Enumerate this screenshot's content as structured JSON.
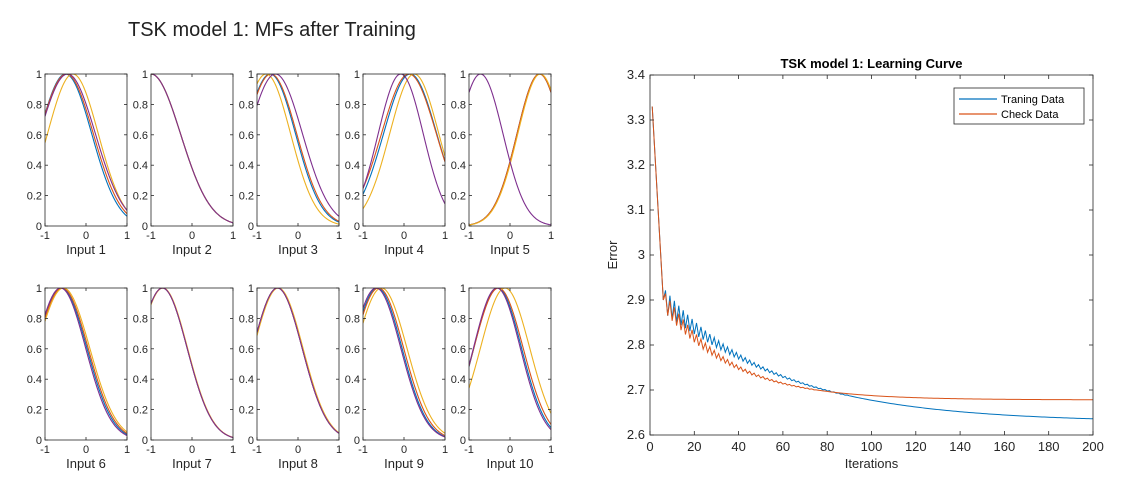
{
  "figure_title": "TSK model 1: MFs after Training",
  "chart_data": [
    {
      "type": "line",
      "panel": "Input 1",
      "xlabel": "Input 1",
      "xlim": [
        -1,
        1
      ],
      "ylim": [
        0,
        1
      ],
      "xticks": [
        "-1",
        "0",
        "1"
      ],
      "yticks": [
        "0",
        "0.2",
        "0.4",
        "0.6",
        "0.8",
        "1"
      ],
      "series": [
        {
          "center": -0.5,
          "sigma": 0.64,
          "color": "#0072BD"
        },
        {
          "center": -0.48,
          "sigma": 0.66,
          "color": "#D95319"
        },
        {
          "center": -0.32,
          "sigma": 0.62,
          "color": "#EDB120"
        },
        {
          "center": -0.45,
          "sigma": 0.68,
          "color": "#7E2F8E"
        }
      ]
    },
    {
      "type": "line",
      "panel": "Input 2",
      "xlabel": "Input 2",
      "xlim": [
        -1,
        1
      ],
      "ylim": [
        0,
        1
      ],
      "xticks": [
        "-1",
        "0",
        "1"
      ],
      "yticks": [
        "0",
        "0.2",
        "0.4",
        "0.6",
        "0.8",
        "1"
      ],
      "series": [
        {
          "center": -1.0,
          "sigma": 0.72,
          "color": "#0072BD"
        },
        {
          "center": -1.0,
          "sigma": 0.72,
          "color": "#D95319"
        },
        {
          "center": -1.0,
          "sigma": 0.72,
          "color": "#EDB120"
        },
        {
          "center": -1.0,
          "sigma": 0.72,
          "color": "#7E2F8E"
        }
      ]
    },
    {
      "type": "line",
      "panel": "Input 3",
      "xlabel": "Input 3",
      "xlim": [
        -1,
        1
      ],
      "ylim": [
        0,
        1
      ],
      "xticks": [
        "-1",
        "0",
        "1"
      ],
      "yticks": [
        "0",
        "0.2",
        "0.4",
        "0.6",
        "0.8",
        "1"
      ],
      "series": [
        {
          "center": -0.68,
          "sigma": 0.62,
          "color": "#0072BD"
        },
        {
          "center": -0.66,
          "sigma": 0.63,
          "color": "#D95319"
        },
        {
          "center": -0.78,
          "sigma": 0.6,
          "color": "#EDB120"
        },
        {
          "center": -0.55,
          "sigma": 0.66,
          "color": "#7E2F8E"
        }
      ]
    },
    {
      "type": "line",
      "panel": "Input 4",
      "xlabel": "Input 4",
      "xlim": [
        -1,
        1
      ],
      "ylim": [
        0,
        1
      ],
      "xticks": [
        "-1",
        "0",
        "1"
      ],
      "yticks": [
        "0",
        "0.2",
        "0.4",
        "0.6",
        "0.8",
        "1"
      ],
      "series": [
        {
          "center": 0.15,
          "sigma": 0.65,
          "color": "#0072BD"
        },
        {
          "center": 0.12,
          "sigma": 0.67,
          "color": "#D95319"
        },
        {
          "center": 0.25,
          "sigma": 0.6,
          "color": "#EDB120"
        },
        {
          "center": -0.08,
          "sigma": 0.55,
          "color": "#7E2F8E"
        }
      ]
    },
    {
      "type": "line",
      "panel": "Input 5",
      "xlabel": "Input 5",
      "xlim": [
        -1,
        1
      ],
      "ylim": [
        0,
        1
      ],
      "xticks": [
        "-1",
        "0",
        "1"
      ],
      "yticks": [
        "0",
        "0.2",
        "0.4",
        "0.6",
        "0.8",
        "1"
      ],
      "series": [
        {
          "center": 0.72,
          "sigma": 0.55,
          "color": "#0072BD"
        },
        {
          "center": 0.72,
          "sigma": 0.55,
          "color": "#D95319"
        },
        {
          "center": 0.74,
          "sigma": 0.55,
          "color": "#EDB120"
        },
        {
          "center": -0.72,
          "sigma": 0.55,
          "color": "#7E2F8E"
        }
      ]
    },
    {
      "type": "line",
      "panel": "Input 6",
      "xlabel": "Input 6",
      "xlim": [
        -1,
        1
      ],
      "ylim": [
        0,
        1
      ],
      "xticks": [
        "-1",
        "0",
        "1"
      ],
      "yticks": [
        "0",
        "0.2",
        "0.4",
        "0.6",
        "0.8",
        "1"
      ],
      "series": [
        {
          "center": -0.6,
          "sigma": 0.62,
          "color": "#0072BD"
        },
        {
          "center": -0.58,
          "sigma": 0.63,
          "color": "#D95319"
        },
        {
          "center": -0.55,
          "sigma": 0.64,
          "color": "#EDB120"
        },
        {
          "center": -0.62,
          "sigma": 0.61,
          "color": "#7E2F8E"
        }
      ]
    },
    {
      "type": "line",
      "panel": "Input 7",
      "xlabel": "Input 7",
      "xlim": [
        -1,
        1
      ],
      "ylim": [
        0,
        1
      ],
      "xticks": [
        "-1",
        "0",
        "1"
      ],
      "yticks": [
        "0",
        "0.2",
        "0.4",
        "0.6",
        "0.8",
        "1"
      ],
      "series": [
        {
          "center": -0.72,
          "sigma": 0.6,
          "color": "#0072BD"
        },
        {
          "center": -0.72,
          "sigma": 0.6,
          "color": "#D95319"
        },
        {
          "center": -0.71,
          "sigma": 0.6,
          "color": "#EDB120"
        },
        {
          "center": -0.72,
          "sigma": 0.6,
          "color": "#7E2F8E"
        }
      ]
    },
    {
      "type": "line",
      "panel": "Input 8",
      "xlabel": "Input 8",
      "xlim": [
        -1,
        1
      ],
      "ylim": [
        0,
        1
      ],
      "xticks": [
        "-1",
        "0",
        "1"
      ],
      "yticks": [
        "0",
        "0.2",
        "0.4",
        "0.6",
        "0.8",
        "1"
      ],
      "series": [
        {
          "center": -0.5,
          "sigma": 0.6,
          "color": "#0072BD"
        },
        {
          "center": -0.5,
          "sigma": 0.6,
          "color": "#D95319"
        },
        {
          "center": -0.48,
          "sigma": 0.6,
          "color": "#EDB120"
        },
        {
          "center": -0.5,
          "sigma": 0.6,
          "color": "#7E2F8E"
        }
      ]
    },
    {
      "type": "line",
      "panel": "Input 9",
      "xlabel": "Input 9",
      "xlim": [
        -1,
        1
      ],
      "ylim": [
        0,
        1
      ],
      "xticks": [
        "-1",
        "0",
        "1"
      ],
      "yticks": [
        "0",
        "0.2",
        "0.4",
        "0.6",
        "0.8",
        "1"
      ],
      "series": [
        {
          "center": -0.65,
          "sigma": 0.6,
          "color": "#0072BD"
        },
        {
          "center": -0.62,
          "sigma": 0.61,
          "color": "#D95319"
        },
        {
          "center": -0.55,
          "sigma": 0.62,
          "color": "#EDB120"
        },
        {
          "center": -0.68,
          "sigma": 0.6,
          "color": "#7E2F8E"
        }
      ]
    },
    {
      "type": "line",
      "panel": "Input 10",
      "xlabel": "Input 10",
      "xlim": [
        -1,
        1
      ],
      "ylim": [
        0,
        1
      ],
      "xticks": [
        "-1",
        "0",
        "1"
      ],
      "yticks": [
        "0",
        "0.2",
        "0.4",
        "0.6",
        "0.8",
        "1"
      ],
      "series": [
        {
          "center": -0.3,
          "sigma": 0.58,
          "color": "#0072BD"
        },
        {
          "center": -0.28,
          "sigma": 0.6,
          "color": "#D95319"
        },
        {
          "center": -0.12,
          "sigma": 0.6,
          "color": "#EDB120"
        },
        {
          "center": -0.32,
          "sigma": 0.57,
          "color": "#7E2F8E"
        }
      ]
    },
    {
      "type": "line",
      "title": "TSK model 1: Learning Curve",
      "xlabel": "Iterations",
      "ylabel": "Error",
      "xlim": [
        0,
        200
      ],
      "ylim": [
        2.6,
        3.4
      ],
      "xticks": [
        "0",
        "20",
        "40",
        "60",
        "80",
        "100",
        "120",
        "140",
        "160",
        "180",
        "200"
      ],
      "yticks": [
        "2.6",
        "2.7",
        "2.8",
        "2.9",
        "3",
        "3.1",
        "3.2",
        "3.3",
        "3.4"
      ],
      "grid": false,
      "legend_position": "top-right",
      "series": [
        {
          "name": "Traning Data",
          "color": "#0072BD",
          "start": [
            1,
            3.33
          ],
          "drop_at": [
            6,
            2.9
          ],
          "plateau": 2.628,
          "decay": 55,
          "osc_amp": 0.055,
          "osc_decay": 22,
          "osc_until": 90
        },
        {
          "name": "Check Data",
          "color": "#D95319",
          "start": [
            1,
            3.33
          ],
          "drop_at": [
            6,
            2.9
          ],
          "plateau": 2.678,
          "decay": 30,
          "osc_amp": 0.045,
          "osc_decay": 20,
          "osc_until": 75
        }
      ]
    }
  ]
}
